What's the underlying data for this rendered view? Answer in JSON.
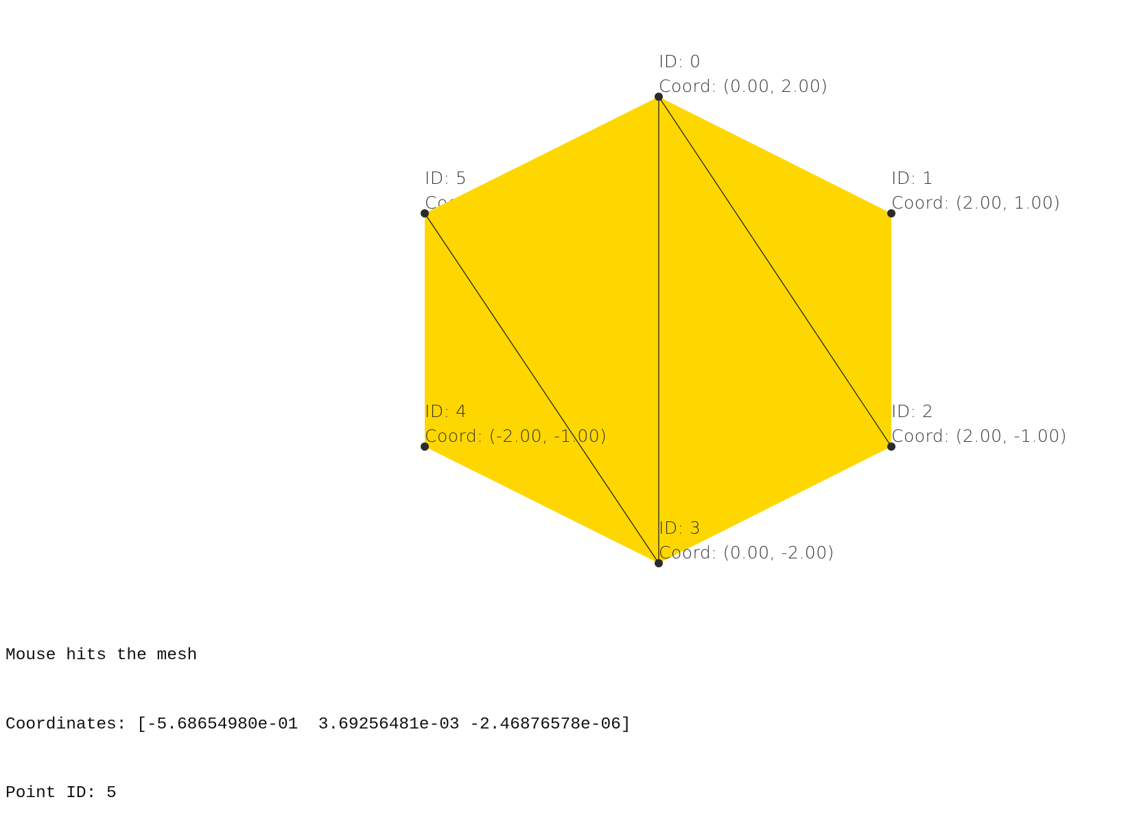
{
  "mesh": {
    "fill_color": "#FFD700",
    "edge_color": "#222222",
    "point_color": "#2b2b2b",
    "points": [
      {
        "id_label": "ID: 0",
        "coord_label": "Coord: (0.00, 2.00)"
      },
      {
        "id_label": "ID: 1",
        "coord_label": "Coord: (2.00, 1.00)"
      },
      {
        "id_label": "ID: 2",
        "coord_label": "Coord: (2.00, -1.00)"
      },
      {
        "id_label": "ID: 3",
        "coord_label": "Coord: (0.00, -2.00)"
      },
      {
        "id_label": "ID: 4",
        "coord_label": "Coord: (-2.00, -1.00)"
      },
      {
        "id_label": "ID: 5",
        "coord_label": "Coord: (-2.00, 1.00)"
      }
    ]
  },
  "console": {
    "line1": "Mouse hits the mesh",
    "line2": "Coordinates: [-5.68654980e-01  3.69256481e-03 -2.46876578e-06]",
    "line3": "Point ID: 5"
  }
}
